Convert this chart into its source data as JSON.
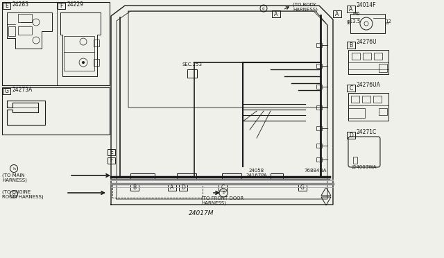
{
  "bg_color": "#f0f0eb",
  "lc": "#1a1a1a",
  "part_E_top": "24283",
  "part_F_top": "24229",
  "part_G_left": "24273A",
  "part_A_right": "24014F",
  "part_B_right": "24276U",
  "part_C_right": "24276UA",
  "part_D_right": "24271C",
  "part_main": "24017M",
  "part_sec253": "SEC.253",
  "part_24058": "24058",
  "part_24167PA": "24167PA",
  "part_76884NA": "76884NA",
  "part_J24003WA": "J24003WA",
  "ann_body": "(TO BODY\nHARNESS)",
  "ann_main": "(TO MAIN\nHARNESS)",
  "ann_engine": "(TO ENGINE\nROOM HARNESS)",
  "ann_front_door": "(TO FRONT DOOR\nHARNESS)",
  "ann_M6": "M6",
  "ann_phi": "φ13.5",
  "ann_12": "12"
}
